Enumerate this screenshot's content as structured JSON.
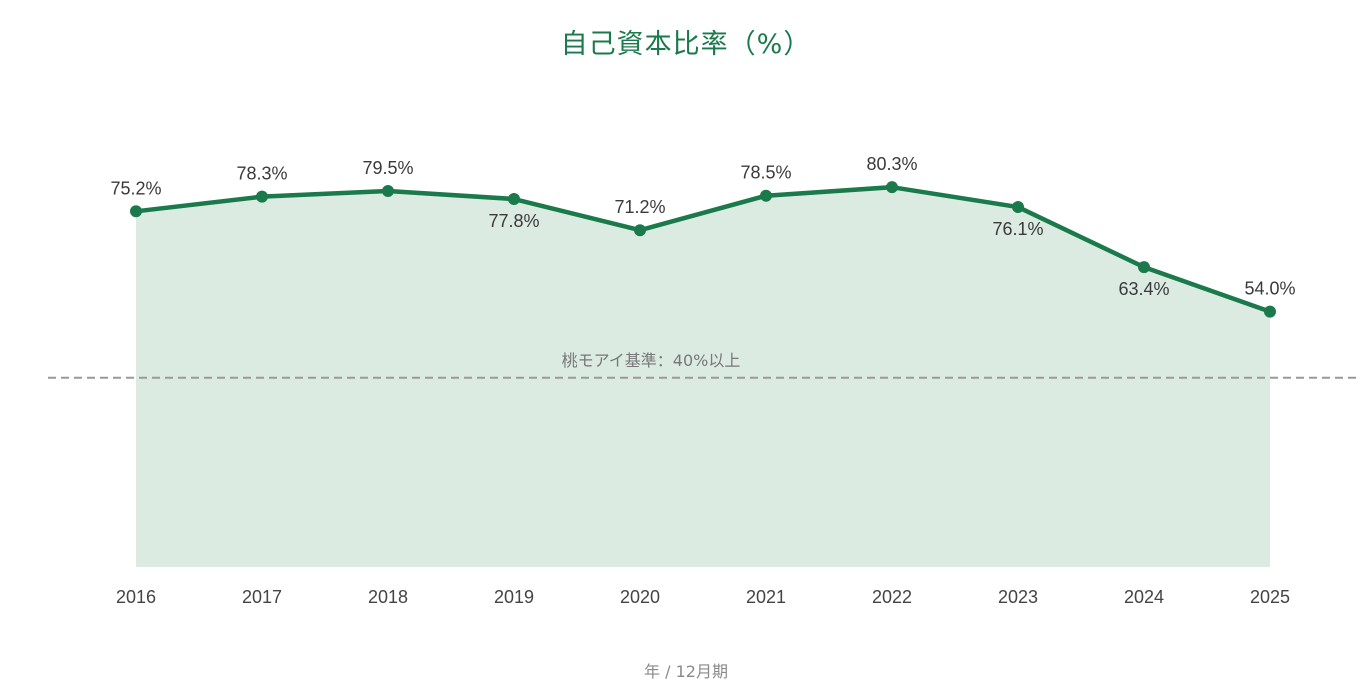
{
  "chart_data": {
    "type": "area",
    "title": "自己資本比率（%）",
    "xlabel": "年 / 12月期",
    "ylabel": "",
    "categories": [
      "2016",
      "2017",
      "2018",
      "2019",
      "2020",
      "2021",
      "2022",
      "2023",
      "2024",
      "2025"
    ],
    "series": [
      {
        "values": [
          75.2,
          78.3,
          79.5,
          77.8,
          71.2,
          78.5,
          80.3,
          76.1,
          63.4,
          54.0
        ],
        "data_labels": [
          "75.2%",
          "78.3%",
          "79.5%",
          "77.8%",
          "71.2%",
          "78.5%",
          "80.3%",
          "76.1%",
          "63.4%",
          "54.0%"
        ],
        "color": "#1b7a4c",
        "fill_color": "#dcebe2"
      }
    ],
    "ylim": [
      0,
      100
    ],
    "grid": false,
    "reference_line": {
      "value": 40,
      "label": "桃モアイ基準：40%以上",
      "color": "#999999",
      "style": "dashed"
    }
  }
}
